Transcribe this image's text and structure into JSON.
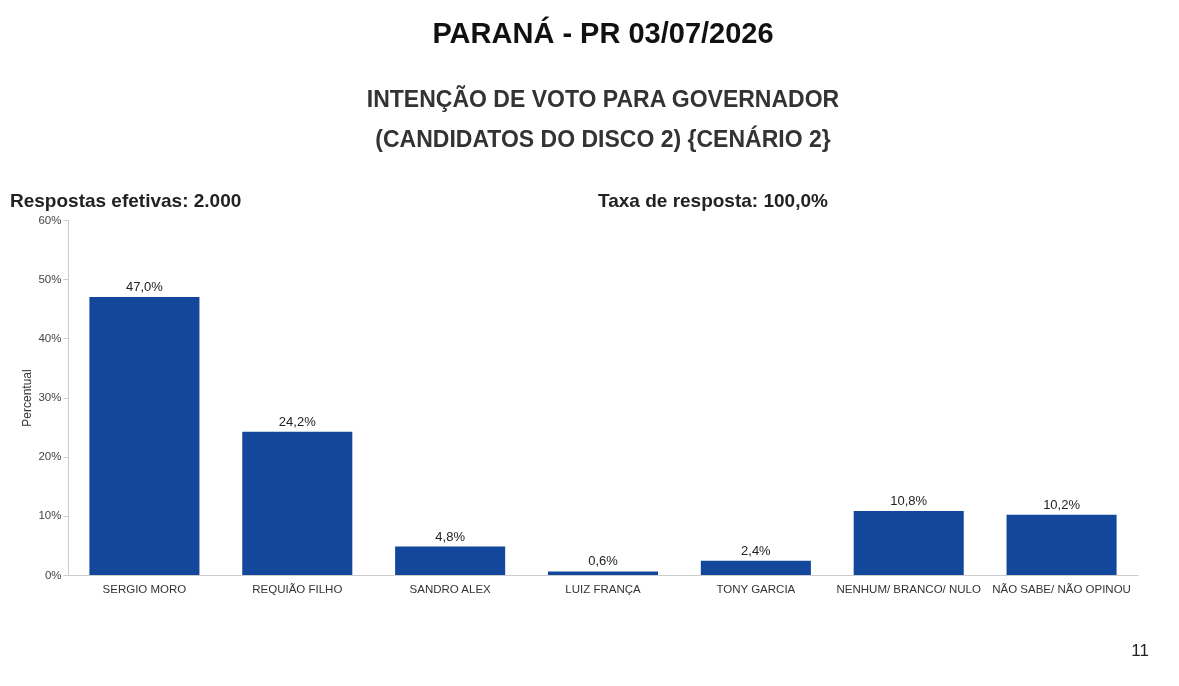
{
  "chart_data": {
    "type": "bar",
    "title": "PARANÁ - PR 03/07/2026",
    "subtitle": "INTENÇÃO DE VOTO PARA GOVERNADOR\n(CANDIDATOS DO DISCO 2) {CENÁRIO 2}",
    "annotations": [
      "Respostas efetivas: 2.000",
      "Taxa de resposta: 100,0%",
      "11"
    ],
    "ylabel": "Percentual",
    "categories": [
      "SERGIO MORO",
      "REQUIÃO FILHO",
      "SANDRO ALEX",
      "LUIZ FRANÇA",
      "TONY GARCIA",
      "NENHUM/ BRANCO/ NULO",
      "NÃO SABE/ NÃO OPINOU"
    ],
    "values": [
      47.0,
      24.2,
      4.8,
      0.6,
      2.4,
      10.8,
      10.2
    ],
    "value_labels": [
      "47,0%",
      "24,2%",
      "4,8%",
      "0,6%",
      "2,4%",
      "10,8%",
      "10,2%"
    ],
    "color": "#12479b",
    "ylim": [
      0,
      60
    ],
    "yticks": [
      {
        "value": 0,
        "label": "0%"
      },
      {
        "value": 10,
        "label": "10%"
      },
      {
        "value": 20,
        "label": "20%"
      },
      {
        "value": 30,
        "label": "30%"
      },
      {
        "value": 40,
        "label": "40%"
      },
      {
        "value": 50,
        "label": "50%"
      },
      {
        "value": 60,
        "label": "60%"
      }
    ],
    "grid": false
  }
}
